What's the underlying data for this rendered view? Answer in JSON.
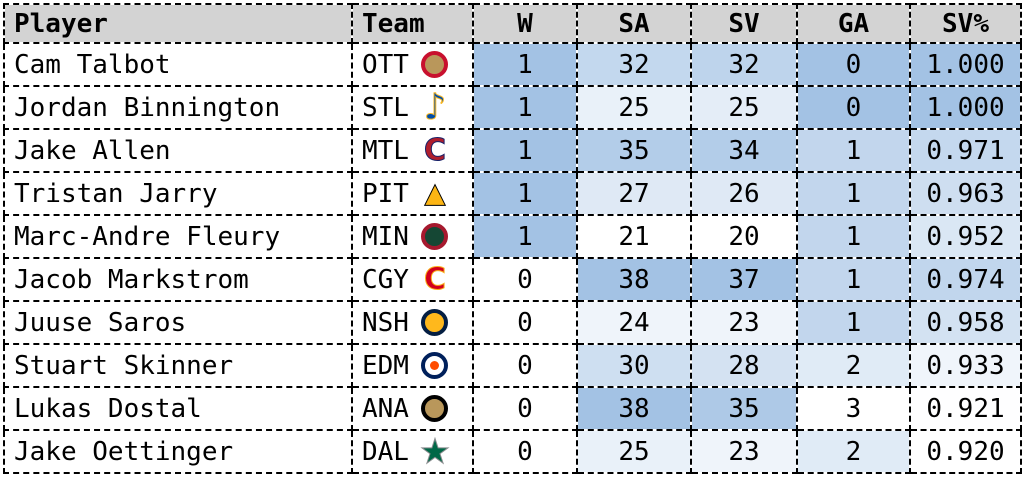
{
  "colors": {
    "header_bg": "#d3d3d3",
    "border": "#000000",
    "text": "#000000",
    "heat_min": "#ffffff",
    "heat_max": "#a3c2e4"
  },
  "table": {
    "columns": [
      {
        "key": "player",
        "label": "Player",
        "align": "left",
        "heat": null
      },
      {
        "key": "team",
        "label": "Team",
        "align": "left",
        "heat": null
      },
      {
        "key": "w",
        "label": "W",
        "align": "center",
        "heat": "high"
      },
      {
        "key": "sa",
        "label": "SA",
        "align": "center",
        "heat": "high"
      },
      {
        "key": "sv",
        "label": "SV",
        "align": "center",
        "heat": "high"
      },
      {
        "key": "ga",
        "label": "GA",
        "align": "center",
        "heat": "low"
      },
      {
        "key": "sv_pct",
        "label": "SV%",
        "align": "center",
        "heat": "high"
      }
    ],
    "rows": [
      {
        "player": "Cam Talbot",
        "team": "OTT",
        "w": 1,
        "sa": 32,
        "sv": 32,
        "ga": 0,
        "sv_pct": "1.000"
      },
      {
        "player": "Jordan Binnington",
        "team": "STL",
        "w": 1,
        "sa": 25,
        "sv": 25,
        "ga": 0,
        "sv_pct": "1.000"
      },
      {
        "player": "Jake Allen",
        "team": "MTL",
        "w": 1,
        "sa": 35,
        "sv": 34,
        "ga": 1,
        "sv_pct": "0.971"
      },
      {
        "player": "Tristan Jarry",
        "team": "PIT",
        "w": 1,
        "sa": 27,
        "sv": 26,
        "ga": 1,
        "sv_pct": "0.963"
      },
      {
        "player": "Marc-Andre Fleury",
        "team": "MIN",
        "w": 1,
        "sa": 21,
        "sv": 20,
        "ga": 1,
        "sv_pct": "0.952"
      },
      {
        "player": "Jacob Markstrom",
        "team": "CGY",
        "w": 0,
        "sa": 38,
        "sv": 37,
        "ga": 1,
        "sv_pct": "0.974"
      },
      {
        "player": "Juuse Saros",
        "team": "NSH",
        "w": 0,
        "sa": 24,
        "sv": 23,
        "ga": 1,
        "sv_pct": "0.958"
      },
      {
        "player": "Stuart Skinner",
        "team": "EDM",
        "w": 0,
        "sa": 30,
        "sv": 28,
        "ga": 2,
        "sv_pct": "0.933"
      },
      {
        "player": "Lukas Dostal",
        "team": "ANA",
        "w": 0,
        "sa": 38,
        "sv": 35,
        "ga": 3,
        "sv_pct": "0.921"
      },
      {
        "player": "Jake Oettinger",
        "team": "DAL",
        "w": 0,
        "sa": 25,
        "sv": 23,
        "ga": 2,
        "sv_pct": "0.920"
      }
    ]
  },
  "teams": {
    "OTT": {
      "logo": "senators-logo",
      "shape": "circle",
      "colors": [
        "#C8102E",
        "#B9975B"
      ]
    },
    "STL": {
      "logo": "blues-note-logo",
      "shape": "glyph",
      "glyph": "♪",
      "size": 36,
      "colors": [
        "#004DA8",
        "#F8B826"
      ]
    },
    "MTL": {
      "logo": "canadiens-logo",
      "shape": "glyph",
      "glyph": "C",
      "size": 30,
      "colors": [
        "#AF1E2D",
        "#192168"
      ]
    },
    "PIT": {
      "logo": "penguins-logo",
      "shape": "glyph",
      "glyph": "▲",
      "size": 27,
      "colors": [
        "#FCB514",
        "#000000"
      ]
    },
    "MIN": {
      "logo": "wild-logo",
      "shape": "circle",
      "colors": [
        "#A6192E",
        "#154734"
      ]
    },
    "CGY": {
      "logo": "flames-logo",
      "shape": "glyph",
      "glyph": "C",
      "size": 30,
      "colors": [
        "#D2001C",
        "#FAAF19"
      ]
    },
    "NSH": {
      "logo": "predators-logo",
      "shape": "circle",
      "colors": [
        "#041E42",
        "#FFB81C"
      ]
    },
    "EDM": {
      "logo": "oilers-logo",
      "shape": "circle",
      "colors": [
        "#00205B",
        "#FFFFFF"
      ],
      "dot": "#FF4C00"
    },
    "ANA": {
      "logo": "ducks-logo",
      "shape": "circle",
      "colors": [
        "#000000",
        "#B9975B"
      ]
    },
    "DAL": {
      "logo": "stars-logo",
      "shape": "glyph",
      "glyph": "★",
      "size": 34,
      "colors": [
        "#006847",
        "#8A8D8F"
      ]
    }
  },
  "chart_data": {
    "type": "table",
    "columns": [
      "Player",
      "Team",
      "W",
      "SA",
      "SV",
      "GA",
      "SV%"
    ],
    "rows": [
      [
        "Cam Talbot",
        "OTT",
        1,
        32,
        32,
        0,
        "1.000"
      ],
      [
        "Jordan Binnington",
        "STL",
        1,
        25,
        25,
        0,
        "1.000"
      ],
      [
        "Jake Allen",
        "MTL",
        1,
        35,
        34,
        1,
        "0.971"
      ],
      [
        "Tristan Jarry",
        "PIT",
        1,
        27,
        26,
        1,
        "0.963"
      ],
      [
        "Marc-Andre Fleury",
        "MIN",
        1,
        21,
        20,
        1,
        "0.952"
      ],
      [
        "Jacob Markstrom",
        "CGY",
        0,
        38,
        37,
        1,
        "0.974"
      ],
      [
        "Juuse Saros",
        "NSH",
        0,
        24,
        23,
        1,
        "0.958"
      ],
      [
        "Stuart Skinner",
        "EDM",
        0,
        30,
        28,
        2,
        "0.933"
      ],
      [
        "Lukas Dostal",
        "ANA",
        0,
        38,
        35,
        3,
        "0.921"
      ],
      [
        "Jake Oettinger",
        "DAL",
        0,
        25,
        23,
        2,
        "0.920"
      ]
    ],
    "layout_hints": {
      "heatmap": "per-column white-to-blue; W/SA/SV/SV% higher is darker, GA lower is darker",
      "grid": "dashed black borders on all cells",
      "header_background": "#d3d3d3"
    }
  }
}
